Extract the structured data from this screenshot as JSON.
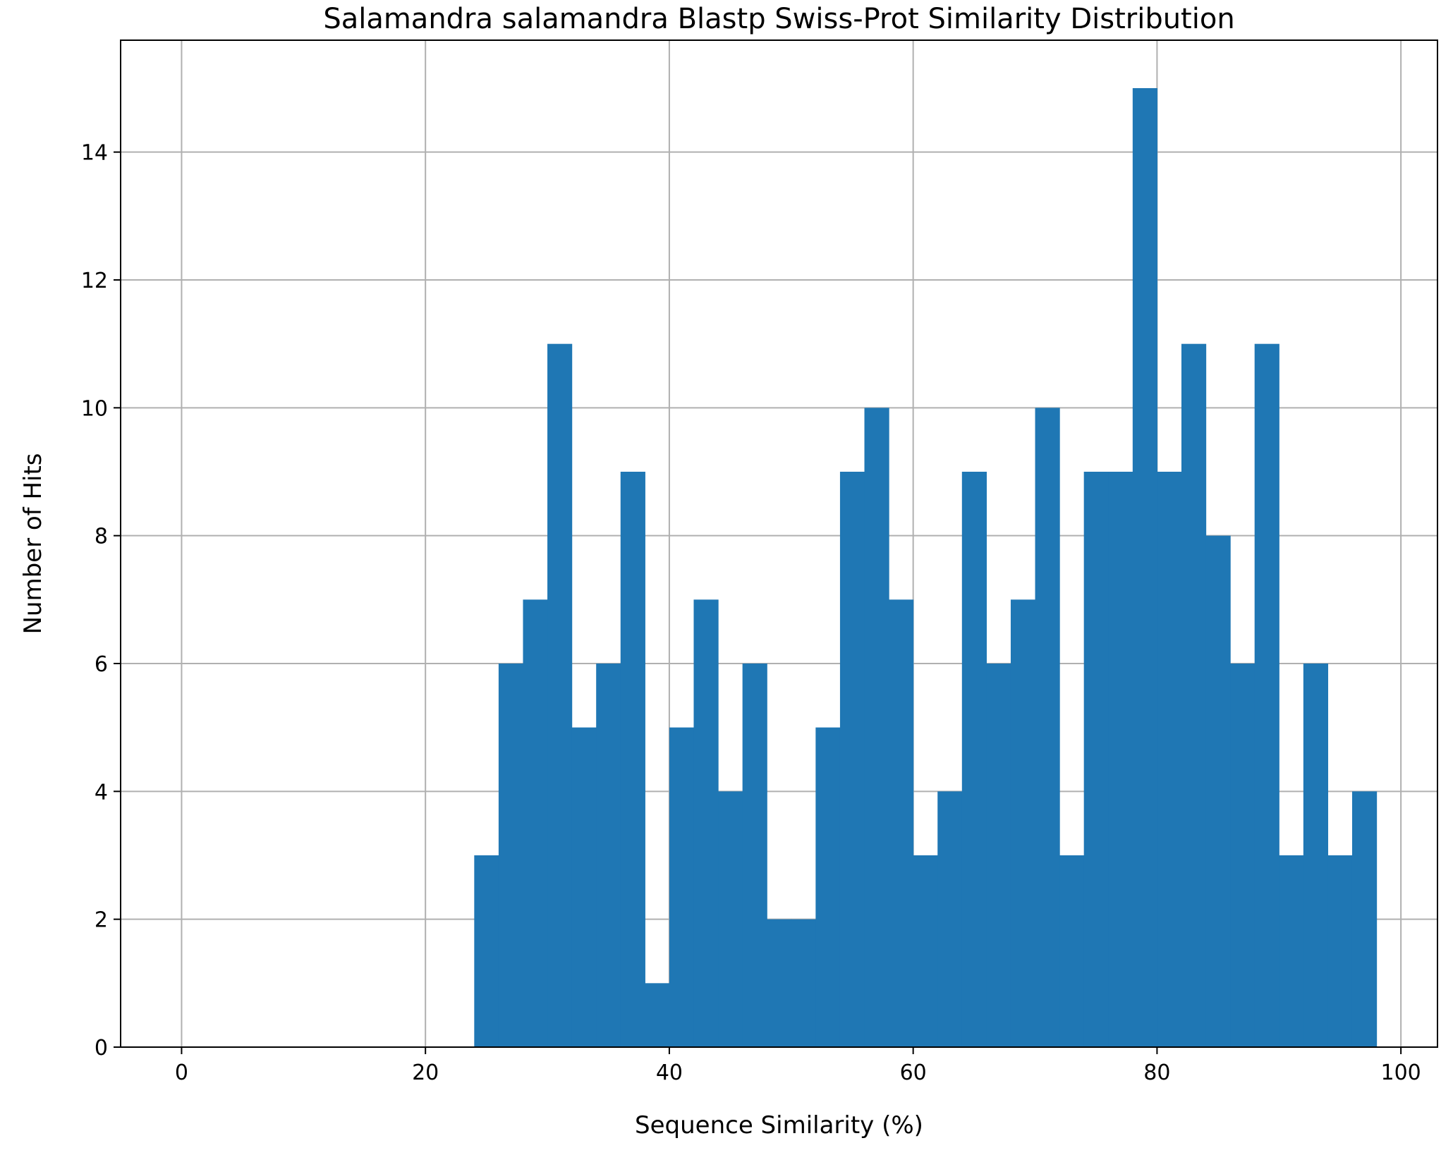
{
  "chart_data": {
    "type": "bar",
    "title": "Salamandra salamandra Blastp Swiss-Prot Similarity Distribution",
    "xlabel": "Sequence Similarity (%)",
    "ylabel": "Number of Hits",
    "xlim": [
      -5,
      103
    ],
    "ylim": [
      0,
      15.75
    ],
    "xticks": [
      0,
      20,
      40,
      60,
      80,
      100
    ],
    "yticks": [
      0,
      2,
      4,
      6,
      8,
      10,
      12,
      14
    ],
    "grid": true,
    "bin_width": 2,
    "bin_starts": [
      24,
      26,
      28,
      30,
      32,
      34,
      36,
      38,
      40,
      42,
      44,
      46,
      48,
      50,
      52,
      54,
      56,
      58,
      60,
      62,
      64,
      66,
      68,
      70,
      72,
      74,
      76,
      78,
      80,
      82,
      84,
      86,
      88,
      90,
      92,
      94,
      96
    ],
    "values": [
      3,
      6,
      7,
      11,
      5,
      6,
      9,
      1,
      5,
      7,
      4,
      6,
      2,
      2,
      5,
      9,
      10,
      7,
      3,
      4,
      9,
      6,
      7,
      10,
      3,
      9,
      9,
      15,
      9,
      11,
      8,
      6,
      11,
      3,
      6,
      3,
      4
    ],
    "bar_color": "#1f77b4",
    "grid_color": "#b0b0b0"
  }
}
